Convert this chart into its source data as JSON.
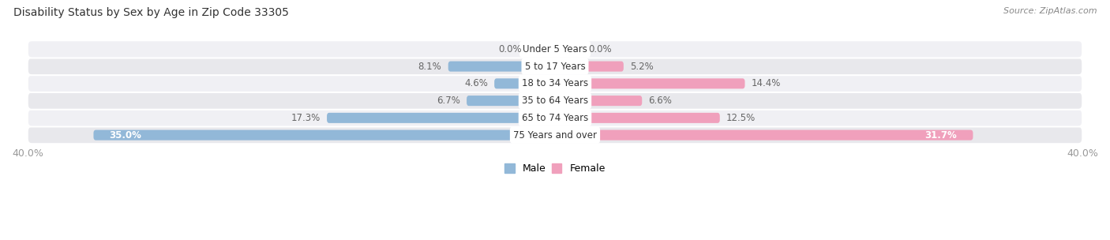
{
  "title": "Disability Status by Sex by Age in Zip Code 33305",
  "source": "Source: ZipAtlas.com",
  "categories": [
    "Under 5 Years",
    "5 to 17 Years",
    "18 to 34 Years",
    "35 to 64 Years",
    "65 to 74 Years",
    "75 Years and over"
  ],
  "male_values": [
    0.0,
    8.1,
    4.6,
    6.7,
    17.3,
    35.0
  ],
  "female_values": [
    0.0,
    5.2,
    14.4,
    6.6,
    12.5,
    31.7
  ],
  "max_val": 40.0,
  "male_color": "#92b8d8",
  "female_color": "#f0a0bc",
  "bar_bg_color_even": "#e8e8ec",
  "bar_bg_color_odd": "#f0f0f4",
  "title_color": "#333333",
  "source_color": "#888888",
  "tick_color": "#999999",
  "center_label_color": "#333333",
  "value_label_color": "#666666",
  "value_label_inside_color": "#ffffff",
  "label_fontsize": 8.5,
  "title_fontsize": 10,
  "source_fontsize": 8,
  "bar_height": 0.6,
  "figsize": [
    14.06,
    3.04
  ]
}
